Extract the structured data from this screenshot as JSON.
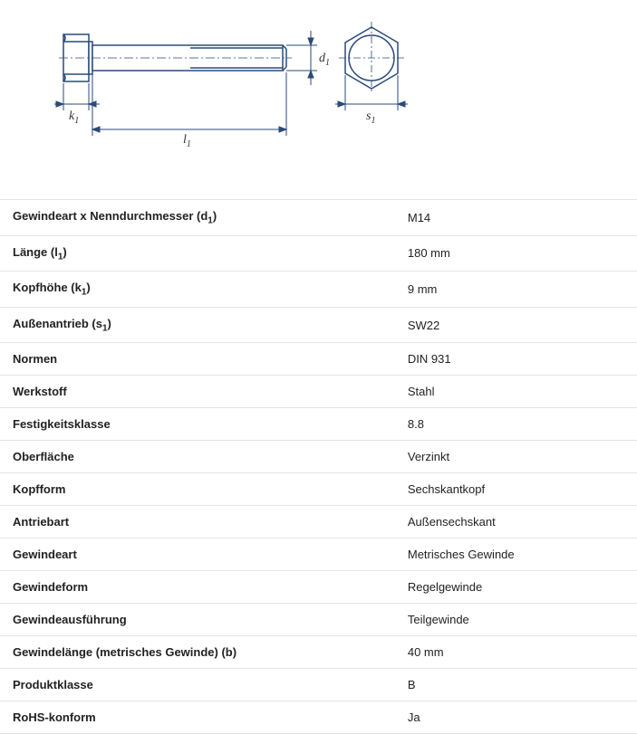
{
  "diagram": {
    "type": "technical-drawing",
    "stroke_color": "#2b4a7a",
    "fill_color": "#ffffff",
    "stroke_width": 1.5,
    "label_color": "#333333",
    "labels": {
      "d1": "d",
      "d1_sub": "1",
      "k1": "k",
      "k1_sub": "1",
      "l1": "l",
      "l1_sub": "1",
      "s1": "s",
      "s1_sub": "1"
    }
  },
  "specs": [
    {
      "label": "Gewindeart x Nenndurchmesser (d",
      "sub": "1",
      "label_suffix": ")",
      "value": "M14"
    },
    {
      "label": "Länge (l",
      "sub": "1",
      "label_suffix": ")",
      "value": "180 mm"
    },
    {
      "label": "Kopfhöhe (k",
      "sub": "1",
      "label_suffix": ")",
      "value": "9 mm"
    },
    {
      "label": "Außenantrieb (s",
      "sub": "1",
      "label_suffix": ")",
      "value": "SW22"
    },
    {
      "label": "Normen",
      "sub": "",
      "label_suffix": "",
      "value": "DIN 931"
    },
    {
      "label": "Werkstoff",
      "sub": "",
      "label_suffix": "",
      "value": "Stahl"
    },
    {
      "label": "Festigkeitsklasse",
      "sub": "",
      "label_suffix": "",
      "value": "8.8"
    },
    {
      "label": "Oberfläche",
      "sub": "",
      "label_suffix": "",
      "value": "Verzinkt"
    },
    {
      "label": "Kopfform",
      "sub": "",
      "label_suffix": "",
      "value": "Sechskantkopf"
    },
    {
      "label": "Antriebart",
      "sub": "",
      "label_suffix": "",
      "value": "Außensechskant"
    },
    {
      "label": "Gewindeart",
      "sub": "",
      "label_suffix": "",
      "value": "Metrisches Gewinde"
    },
    {
      "label": "Gewindeform",
      "sub": "",
      "label_suffix": "",
      "value": "Regelgewinde"
    },
    {
      "label": "Gewindeausführung",
      "sub": "",
      "label_suffix": "",
      "value": "Teilgewinde"
    },
    {
      "label": "Gewindelänge (metrisches Gewinde) (b)",
      "sub": "",
      "label_suffix": "",
      "value": "40 mm"
    },
    {
      "label": "Produktklasse",
      "sub": "",
      "label_suffix": "",
      "value": "B"
    },
    {
      "label": "RoHS-konform",
      "sub": "",
      "label_suffix": "",
      "value": "Ja"
    }
  ],
  "table_style": {
    "border_color": "#e5e5e5",
    "label_fontsize": 13,
    "label_fontweight": "bold",
    "value_fontsize": 13,
    "row_padding_v": 10,
    "row_padding_h": 14,
    "label_col_width_pct": 62
  }
}
